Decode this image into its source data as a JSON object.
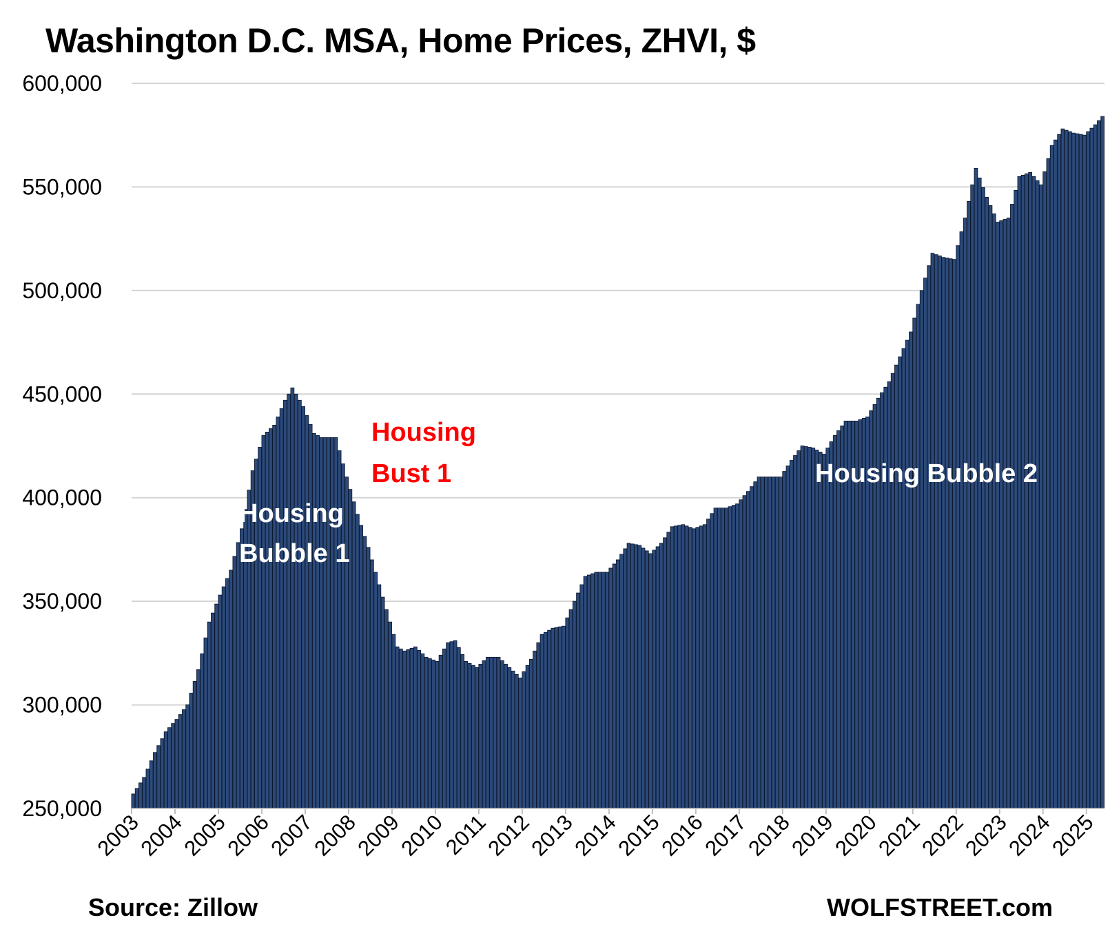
{
  "title": "Washington D.C. MSA, Home Prices, ZHVI, $",
  "source": "Source: Zillow",
  "brand": "WOLFSTREET.com",
  "colors": {
    "bars": "#2c4a7a",
    "bar_edge": "#0d1a30",
    "bust_label": "#ff0000",
    "bubble_label": "#ffffff",
    "grid": "#d4d4d4"
  },
  "chart_data": {
    "type": "bar",
    "grid": true,
    "ylim": [
      250000,
      600000
    ],
    "y_ticks": [
      "250,000",
      "300,000",
      "350,000",
      "400,000",
      "450,000",
      "500,000",
      "550,000",
      "600,000"
    ],
    "x_ticks": [
      "2003",
      "2004",
      "2005",
      "2006",
      "2007",
      "2008",
      "2009",
      "2010",
      "2011",
      "2012",
      "2013",
      "2014",
      "2015",
      "2016",
      "2017",
      "2018",
      "2019",
      "2020",
      "2021",
      "2022",
      "2023",
      "2024",
      "2025"
    ],
    "x_start": "2003-01",
    "annotations": [
      {
        "lines": [
          "Housing",
          "Bubble 1"
        ],
        "color": "#ffffff",
        "near": "2005-06"
      },
      {
        "lines": [
          "Housing",
          "Bust 1"
        ],
        "color": "#ff0000",
        "near": "2008-06"
      },
      {
        "lines": [
          "Housing Bubble 2"
        ],
        "color": "#ffffff",
        "near": "2018-09"
      }
    ],
    "anchors": [
      [
        "2003-01",
        257000
      ],
      [
        "2003-04",
        265000
      ],
      [
        "2003-07",
        277000
      ],
      [
        "2003-10",
        287000
      ],
      [
        "2004-01",
        293000
      ],
      [
        "2004-04",
        300000
      ],
      [
        "2004-07",
        317000
      ],
      [
        "2004-10",
        340000
      ],
      [
        "2005-01",
        353000
      ],
      [
        "2005-04",
        365000
      ],
      [
        "2005-07",
        385000
      ],
      [
        "2005-10",
        413000
      ],
      [
        "2006-01",
        430000
      ],
      [
        "2006-04",
        435000
      ],
      [
        "2006-07",
        447000
      ],
      [
        "2006-09",
        453000
      ],
      [
        "2006-12",
        444000
      ],
      [
        "2007-03",
        431000
      ],
      [
        "2007-05",
        429000
      ],
      [
        "2007-09",
        429000
      ],
      [
        "2007-12",
        410000
      ],
      [
        "2008-03",
        392000
      ],
      [
        "2008-06",
        376000
      ],
      [
        "2008-09",
        358000
      ],
      [
        "2008-12",
        340000
      ],
      [
        "2009-02",
        328000
      ],
      [
        "2009-04",
        326000
      ],
      [
        "2009-07",
        328000
      ],
      [
        "2009-10",
        323000
      ],
      [
        "2010-01",
        321000
      ],
      [
        "2010-04",
        330000
      ],
      [
        "2010-06",
        331000
      ],
      [
        "2010-09",
        321000
      ],
      [
        "2010-12",
        318000
      ],
      [
        "2011-03",
        323000
      ],
      [
        "2011-06",
        323000
      ],
      [
        "2011-09",
        318000
      ],
      [
        "2011-12",
        313000
      ],
      [
        "2012-03",
        322000
      ],
      [
        "2012-06",
        334000
      ],
      [
        "2012-09",
        337000
      ],
      [
        "2012-12",
        338000
      ],
      [
        "2013-03",
        350000
      ],
      [
        "2013-06",
        362000
      ],
      [
        "2013-09",
        364000
      ],
      [
        "2013-12",
        364000
      ],
      [
        "2014-03",
        370000
      ],
      [
        "2014-06",
        378000
      ],
      [
        "2014-09",
        377000
      ],
      [
        "2014-12",
        373000
      ],
      [
        "2015-03",
        378000
      ],
      [
        "2015-06",
        386000
      ],
      [
        "2015-09",
        387000
      ],
      [
        "2015-12",
        385000
      ],
      [
        "2016-03",
        387000
      ],
      [
        "2016-06",
        395000
      ],
      [
        "2016-09",
        395000
      ],
      [
        "2016-12",
        397000
      ],
      [
        "2017-03",
        403000
      ],
      [
        "2017-06",
        410000
      ],
      [
        "2017-09",
        410000
      ],
      [
        "2017-12",
        410000
      ],
      [
        "2018-03",
        418000
      ],
      [
        "2018-06",
        425000
      ],
      [
        "2018-09",
        424000
      ],
      [
        "2018-12",
        421000
      ],
      [
        "2019-03",
        430000
      ],
      [
        "2019-06",
        437000
      ],
      [
        "2019-09",
        437000
      ],
      [
        "2019-12",
        439000
      ],
      [
        "2020-03",
        448000
      ],
      [
        "2020-06",
        456000
      ],
      [
        "2020-09",
        468000
      ],
      [
        "2020-12",
        480000
      ],
      [
        "2021-03",
        500000
      ],
      [
        "2021-06",
        518000
      ],
      [
        "2021-09",
        516000
      ],
      [
        "2021-12",
        515000
      ],
      [
        "2022-03",
        535000
      ],
      [
        "2022-06",
        559000
      ],
      [
        "2022-09",
        545000
      ],
      [
        "2022-12",
        533000
      ],
      [
        "2023-03",
        535000
      ],
      [
        "2023-06",
        555000
      ],
      [
        "2023-09",
        557000
      ],
      [
        "2023-12",
        551000
      ],
      [
        "2024-03",
        570000
      ],
      [
        "2024-06",
        578000
      ],
      [
        "2024-09",
        576000
      ],
      [
        "2024-12",
        575000
      ],
      [
        "2025-03",
        580000
      ],
      [
        "2025-05",
        584000
      ]
    ]
  }
}
